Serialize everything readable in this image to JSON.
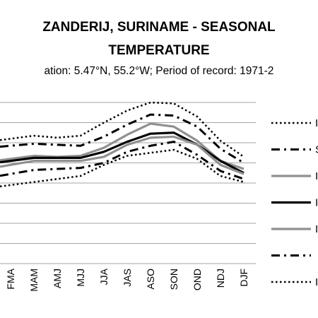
{
  "chart_data": {
    "type": "line",
    "title": "ZANDERIJ, SURINAME - SEASONAL TEMPERATURE",
    "title_lines": [
      "ZANDERIJ, SURINAME - SEASONAL",
      "TEMPERATURE"
    ],
    "subtitle": "ation: 5.47°N, 55.2°W; Period of record: 1971-2",
    "xlabel": "",
    "ylabel": "",
    "categories": [
      "FMA",
      "MAM",
      "AMJ",
      "MJJ",
      "JJA",
      "JAS",
      "ASO",
      "SON",
      "OND",
      "NDJ",
      "DJF"
    ],
    "ylim": [
      0,
      8
    ],
    "grid": true,
    "legend_placement": "right",
    "legend_labels": [
      "I",
      "S",
      "I",
      "I",
      "I",
      "",
      "I"
    ],
    "series": [
      {
        "style": "dotted",
        "color": "#000000",
        "values": [
          6.2,
          6.35,
          6.25,
          6.35,
          7.0,
          7.6,
          8.0,
          7.95,
          7.3,
          6.1,
          5.3
        ]
      },
      {
        "style": "dashdot",
        "color": "#000000",
        "values": [
          5.85,
          5.95,
          5.9,
          5.85,
          6.3,
          6.9,
          7.4,
          7.35,
          6.8,
          5.7,
          5.0
        ]
      },
      {
        "style": "solid",
        "color": "#909090",
        "values": [
          5.2,
          5.35,
          5.3,
          5.35,
          5.75,
          6.4,
          6.95,
          6.8,
          6.1,
          5.1,
          4.7
        ]
      },
      {
        "style": "solid-thick",
        "color": "#000000",
        "values": [
          5.1,
          5.25,
          5.25,
          5.25,
          5.55,
          6.05,
          6.45,
          6.5,
          5.9,
          5.1,
          4.5
        ]
      },
      {
        "style": "solid",
        "color": "#909090",
        "values": [
          4.9,
          5.1,
          5.1,
          5.1,
          5.3,
          5.9,
          6.25,
          6.3,
          5.9,
          4.9,
          4.45
        ]
      },
      {
        "style": "dashdot",
        "color": "#000000",
        "values": [
          4.45,
          4.65,
          4.7,
          4.75,
          5.0,
          5.55,
          5.85,
          6.05,
          5.4,
          4.6,
          4.2
        ]
      },
      {
        "style": "dotted",
        "color": "#000000",
        "values": [
          3.9,
          4.05,
          4.2,
          4.35,
          4.9,
          5.35,
          5.5,
          5.65,
          5.2,
          4.35,
          4.05
        ]
      }
    ]
  }
}
